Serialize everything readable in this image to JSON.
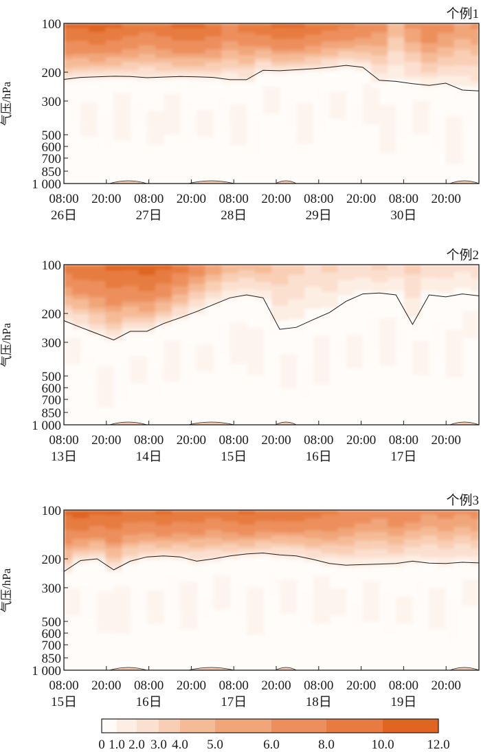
{
  "chart_data": [
    {
      "type": "heatmap",
      "title": "个例1",
      "ylabel": "气压/hPa",
      "y_ticks": [
        "100",
        "200",
        "300",
        "500",
        "600",
        "700",
        "850",
        "1 000"
      ],
      "y_tick_values": [
        100,
        200,
        300,
        500,
        600,
        700,
        850,
        1000
      ],
      "ylim": [
        1000,
        100
      ],
      "x_time_labels": [
        "08:00",
        "20:00",
        "08:00",
        "20:00",
        "08:00",
        "20:00",
        "08:00",
        "20:00",
        "08:00",
        "20:00"
      ],
      "x_day_labels": [
        "26日",
        "27日",
        "28日",
        "29日",
        "30日"
      ],
      "contour_line_hpa": [
        225,
        218,
        216,
        214,
        215,
        219,
        217,
        215,
        216,
        218,
        226,
        226,
        196,
        197,
        195,
        193,
        190,
        186,
        190,
        228,
        232,
        240,
        246,
        238,
        262,
        265
      ],
      "top_intensity": [
        10.5,
        11,
        11.5,
        11,
        10,
        9,
        10,
        11,
        11,
        10,
        8,
        9,
        9.5,
        10.5,
        11,
        10,
        9,
        8.5,
        8,
        7,
        5,
        6.5,
        8,
        7,
        6,
        6.5
      ]
    },
    {
      "type": "heatmap",
      "title": "个例2",
      "ylabel": "气压/hPa",
      "y_ticks": [
        "100",
        "200",
        "300",
        "500",
        "600",
        "700",
        "850",
        "1 000"
      ],
      "y_tick_values": [
        100,
        200,
        300,
        500,
        600,
        700,
        850,
        1000
      ],
      "ylim": [
        1000,
        100
      ],
      "x_time_labels": [
        "08:00",
        "20:00",
        "08:00",
        "20:00",
        "08:00",
        "20:00",
        "08:00",
        "20:00",
        "08:00",
        "20:00"
      ],
      "x_day_labels": [
        "13日",
        "14日",
        "15日",
        "16日",
        "17日"
      ],
      "contour_line_hpa": [
        225,
        248,
        270,
        292,
        262,
        262,
        235,
        215,
        196,
        182,
        168,
        162,
        168,
        255,
        248,
        222,
        198,
        175,
        160,
        158,
        162,
        238,
        162,
        166,
        160,
        164
      ],
      "top_intensity": [
        9,
        9.5,
        10,
        10.5,
        11,
        11.5,
        10.5,
        9,
        7.5,
        6,
        5,
        4.5,
        5,
        4,
        3.5,
        3,
        3.5,
        3,
        3,
        3.5,
        3,
        3.5,
        3,
        3,
        2.5,
        3
      ]
    },
    {
      "type": "heatmap",
      "title": "个例3",
      "ylabel": "气压/hPa",
      "y_ticks": [
        "100",
        "200",
        "300",
        "500",
        "600",
        "700",
        "850",
        "1 000"
      ],
      "y_tick_values": [
        100,
        200,
        300,
        500,
        600,
        700,
        850,
        1000
      ],
      "ylim": [
        1000,
        100
      ],
      "x_time_labels": [
        "08:00",
        "20:00",
        "08:00",
        "20:00",
        "08:00",
        "20:00",
        "08:00",
        "20:00",
        "08:00",
        "20:00"
      ],
      "x_day_labels": [
        "15日",
        "16日",
        "17日",
        "18日",
        "19日"
      ],
      "contour_line_hpa": [
        244,
        206,
        200,
        238,
        208,
        196,
        194,
        196,
        208,
        200,
        194,
        190,
        188,
        192,
        194,
        202,
        216,
        222,
        220,
        218,
        216,
        208,
        215,
        216,
        212,
        214
      ],
      "top_intensity": [
        11,
        11.5,
        11,
        10.5,
        10,
        10,
        11,
        10,
        9.5,
        9,
        10,
        10.5,
        10,
        9.5,
        9.5,
        9,
        8.5,
        8,
        7.5,
        7,
        8,
        7.5,
        6.5,
        7,
        6.5,
        7
      ]
    }
  ],
  "colorbar": {
    "tick_labels": [
      "0",
      "1.0",
      "2.0",
      "3.0",
      "4.0",
      "5.0",
      "6.0",
      "8.0",
      "10.0",
      "12.0"
    ],
    "tick_values": [
      0,
      1,
      2,
      3,
      4,
      5,
      6,
      8,
      10,
      12
    ],
    "colors": [
      "#fffbf8",
      "#fdeee4",
      "#fbe0d0",
      "#f8cfb5",
      "#f5bb97",
      "#f1a67a",
      "#ec8f5c",
      "#e77b40",
      "#df6520"
    ]
  }
}
